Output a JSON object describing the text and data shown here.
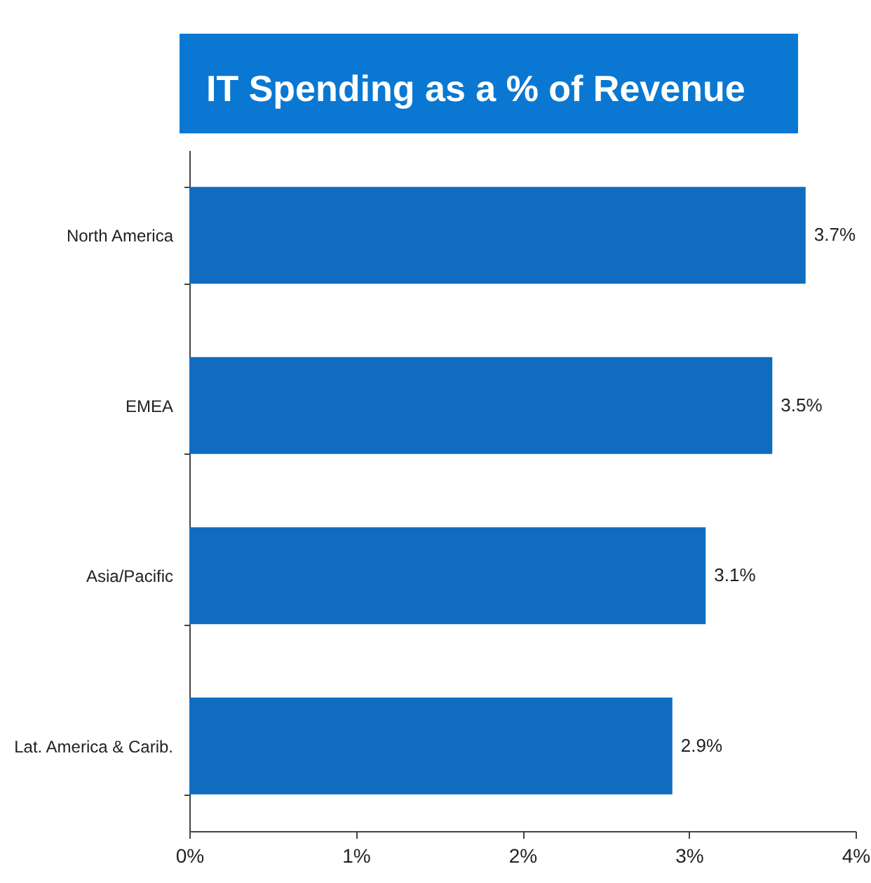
{
  "chart_data": {
    "type": "bar",
    "orientation": "horizontal",
    "title": "IT Spending as a % of Revenue",
    "categories": [
      "North America",
      "EMEA",
      "Asia/Pacific",
      "Lat. America & Carib."
    ],
    "values": [
      3.7,
      3.5,
      3.1,
      2.9
    ],
    "color": "#0f6cbe",
    "value_labels": [
      "3.7%",
      "3.5%",
      "3.1%",
      "2.9%"
    ],
    "xlim": [
      0,
      4
    ],
    "xticks": [
      {
        "value": 0,
        "label": "0%"
      },
      {
        "value": 1,
        "label": "1%"
      },
      {
        "value": 2,
        "label": "2%"
      },
      {
        "value": 3,
        "label": "3%"
      },
      {
        "value": 4,
        "label": "4%"
      }
    ]
  }
}
